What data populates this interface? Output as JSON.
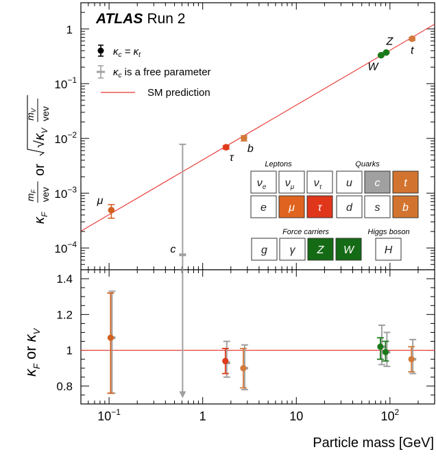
{
  "chart_data": [
    {
      "type": "scatter",
      "panel": "top",
      "title_bold": "ATLAS",
      "title_rest": "Run 2",
      "xscale": "log",
      "yscale": "log",
      "xlim": [
        0.05,
        300
      ],
      "ylim": [
        4e-05,
        3
      ],
      "ylabel": "κF mF/vev or √κV mV/vev",
      "ylabel_parts": {
        "a": "κ",
        "a_sub": "F",
        "a_frac_num": "m",
        "a_frac_num_sub": "F",
        "a_frac_den": "vev",
        "mid": "or",
        "b": "√κ",
        "b_sub": "V",
        "b_frac_num": "m",
        "b_frac_num_sub": "V",
        "b_frac_den": "vev"
      },
      "yticks": [
        {
          "value": 0.0001,
          "base": "10",
          "exp": "−4"
        },
        {
          "value": 0.001,
          "base": "10",
          "exp": "−3"
        },
        {
          "value": 0.01,
          "base": "10",
          "exp": "−2"
        },
        {
          "value": 0.1,
          "base": "10",
          "exp": "−1"
        },
        {
          "value": 1,
          "base": "1",
          "exp": ""
        }
      ],
      "sm_line": {
        "label": "SM prediction",
        "color": "#e8302e",
        "x": [
          0.05,
          300
        ],
        "y": [
          0.000203,
          1.218
        ]
      },
      "legend": [
        {
          "label": "κc = κt",
          "marker": "black-circle"
        },
        {
          "label": "κc is a free parameter",
          "marker": "grey-cross"
        },
        {
          "label": "SM prediction",
          "marker": "red-line"
        }
      ],
      "legend_labels": {
        "l1_a": "κ",
        "l1_a_sub": "c",
        "l1_mid": " = κ",
        "l1_b_sub": "t",
        "l2_a": "κ",
        "l2_a_sub": "c",
        "l2_rest": " is a free parameter",
        "l3": "SM prediction"
      },
      "points": [
        {
          "name": "μ",
          "x": 0.1057,
          "y": 0.00049,
          "y_low": 0.00035,
          "y_high": 0.00062,
          "color": "#d2601f",
          "label_pos": "above-left"
        },
        {
          "name": "c",
          "x": 0.61,
          "y": 7.5e-05,
          "y_low": 1e-06,
          "y_high": 0.0078,
          "color": "#a0a0a0",
          "label_pos": "left",
          "free": true
        },
        {
          "name": "τ",
          "x": 1.777,
          "y": 0.0069,
          "y_low": 0.0064,
          "y_high": 0.0074,
          "color": "#e03a1a",
          "label_pos": "below-right"
        },
        {
          "name": "b",
          "x": 2.76,
          "y": 0.0101,
          "y_low": 0.009,
          "y_high": 0.0112,
          "color": "#d27a3a",
          "label_pos": "below-right"
        },
        {
          "name": "W",
          "x": 80.4,
          "y": 0.33,
          "y_low": 0.32,
          "y_high": 0.34,
          "color": "#1a7a1a",
          "label_pos": "below-left"
        },
        {
          "name": "Z",
          "x": 91.2,
          "y": 0.37,
          "y_low": 0.36,
          "y_high": 0.38,
          "color": "#1a7a1a",
          "label_pos": "above-right"
        },
        {
          "name": "t",
          "x": 172.5,
          "y": 0.66,
          "y_low": 0.62,
          "y_high": 0.7,
          "color": "#d27a3a",
          "label_pos": "below"
        }
      ],
      "particle_table": {
        "groups": [
          "Leptons",
          "Quarks",
          "Force carriers",
          "Higgs boson"
        ],
        "leptons_row1": [
          {
            "sym": "ν",
            "sub": "e",
            "fill": "#ffffff",
            "text": "#222222"
          },
          {
            "sym": "ν",
            "sub": "μ",
            "fill": "#ffffff",
            "text": "#222222"
          },
          {
            "sym": "ν",
            "sub": "τ",
            "fill": "#ffffff",
            "text": "#222222"
          }
        ],
        "quarks_row1": [
          {
            "sym": "u",
            "sub": "",
            "fill": "#ffffff",
            "text": "#222222"
          },
          {
            "sym": "c",
            "sub": "",
            "fill": "#a0a0a0",
            "text": "#ffffff"
          },
          {
            "sym": "t",
            "sub": "",
            "fill": "#d2742f",
            "text": "#ffffff"
          }
        ],
        "leptons_row2": [
          {
            "sym": "e",
            "sub": "",
            "fill": "#ffffff",
            "text": "#222222"
          },
          {
            "sym": "μ",
            "sub": "",
            "fill": "#e0641f",
            "text": "#ffffff"
          },
          {
            "sym": "τ",
            "sub": "",
            "fill": "#e0361a",
            "text": "#ffffff"
          }
        ],
        "quarks_row2": [
          {
            "sym": "d",
            "sub": "",
            "fill": "#ffffff",
            "text": "#222222"
          },
          {
            "sym": "s",
            "sub": "",
            "fill": "#ffffff",
            "text": "#222222"
          },
          {
            "sym": "b",
            "sub": "",
            "fill": "#d2742f",
            "text": "#ffffff"
          }
        ],
        "force_row": [
          {
            "sym": "g",
            "sub": "",
            "fill": "#ffffff",
            "text": "#222222"
          },
          {
            "sym": "γ",
            "sub": "",
            "fill": "#ffffff",
            "text": "#222222"
          },
          {
            "sym": "Z",
            "sub": "",
            "fill": "#156b15",
            "text": "#ffffff"
          },
          {
            "sym": "W",
            "sub": "",
            "fill": "#156b15",
            "text": "#ffffff"
          }
        ],
        "higgs_row": [
          {
            "sym": "H",
            "sub": "",
            "fill": "#ffffff",
            "text": "#222222"
          }
        ]
      }
    },
    {
      "type": "scatter",
      "panel": "bottom",
      "xscale": "log",
      "xlim": [
        0.05,
        300
      ],
      "ylim": [
        0.7,
        1.45
      ],
      "xlabel": "Particle mass [GeV]",
      "ylabel": "κF or κV",
      "ylabel_parts": {
        "a": "κ",
        "a_sub": "F",
        "mid": "or",
        "b": "κ",
        "b_sub": "V"
      },
      "xticks": [
        {
          "value": 0.1,
          "base": "10",
          "exp": "−1"
        },
        {
          "value": 1,
          "base": "1",
          "exp": ""
        },
        {
          "value": 10,
          "base": "10",
          "exp": ""
        },
        {
          "value": 100,
          "base": "10",
          "exp": "2"
        }
      ],
      "yticks": [
        {
          "value": 0.8,
          "label": "0.8"
        },
        {
          "value": 1,
          "label": "1"
        },
        {
          "value": 1.2,
          "label": "1.2"
        },
        {
          "value": 1.4,
          "label": "1.4"
        }
      ],
      "reference_line": {
        "y": 1,
        "color": "#e8302e"
      },
      "grey_points": [
        {
          "x": 0.1057,
          "y": 1.07,
          "y_low": 0.76,
          "y_high": 1.33
        },
        {
          "x": 0.61,
          "y": 0.74,
          "y_low": 0.74,
          "y_high": 1.4,
          "arrow_down": true
        },
        {
          "x": 1.777,
          "y": 0.93,
          "y_low": 0.85,
          "y_high": 1.05
        },
        {
          "x": 2.76,
          "y": 0.9,
          "y_low": 0.78,
          "y_high": 1.03
        },
        {
          "x": 80.4,
          "y": 1.02,
          "y_low": 0.92,
          "y_high": 1.14
        },
        {
          "x": 91.2,
          "y": 0.99,
          "y_low": 0.91,
          "y_high": 1.1
        },
        {
          "x": 172.5,
          "y": 0.95,
          "y_low": 0.87,
          "y_high": 1.06
        }
      ],
      "points": [
        {
          "name": "μ",
          "x": 0.1057,
          "y": 1.07,
          "y_low": 0.76,
          "y_high": 1.32,
          "color": "#d2601f"
        },
        {
          "name": "τ",
          "x": 1.777,
          "y": 0.94,
          "y_low": 0.87,
          "y_high": 1.01,
          "color": "#e03a1a"
        },
        {
          "name": "b",
          "x": 2.76,
          "y": 0.9,
          "y_low": 0.79,
          "y_high": 1.01,
          "color": "#d27a3a"
        },
        {
          "name": "W",
          "x": 80.4,
          "y": 1.02,
          "y_low": 0.95,
          "y_high": 1.07,
          "color": "#1a7a1a"
        },
        {
          "name": "Z",
          "x": 91.2,
          "y": 0.99,
          "y_low": 0.94,
          "y_high": 1.05,
          "color": "#1a7a1a"
        },
        {
          "name": "t",
          "x": 172.5,
          "y": 0.95,
          "y_low": 0.88,
          "y_high": 1.02,
          "color": "#d27a3a"
        }
      ]
    }
  ]
}
